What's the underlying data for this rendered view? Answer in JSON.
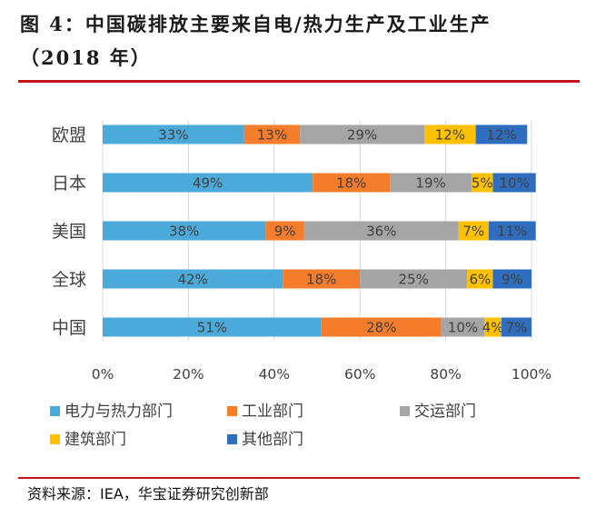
{
  "header": {
    "title_line1": "图 4：中国碳排放主要来自电/热力生产及工业生产",
    "title_line2": "（2018 年）"
  },
  "source": "资料来源：IEA，华宝证券研究创新部",
  "chart_data": {
    "type": "bar",
    "orientation": "horizontal",
    "stacked": true,
    "percent": true,
    "categories": [
      "欧盟",
      "日本",
      "美国",
      "全球",
      "中国"
    ],
    "series": [
      {
        "name": "电力与热力部门",
        "color": "#4baad9",
        "values": [
          33,
          49,
          38,
          42,
          51
        ],
        "labels": [
          "33%",
          "49%",
          "38%",
          "42%",
          "51%"
        ]
      },
      {
        "name": "工业部门",
        "color": "#f47c2a",
        "values": [
          13,
          18,
          9,
          18,
          28
        ],
        "labels": [
          "13%",
          "18%",
          "9%",
          "18%",
          "28%"
        ]
      },
      {
        "name": "交运部门",
        "color": "#a5a5a5",
        "values": [
          29,
          19,
          36,
          25,
          10
        ],
        "labels": [
          "29%",
          "19%",
          "36%",
          "25%",
          "10%"
        ]
      },
      {
        "name": "建筑部门",
        "color": "#ffc000",
        "values": [
          12,
          5,
          7,
          6,
          4
        ],
        "labels": [
          "12%",
          "5%",
          "7%",
          "6%",
          "4%"
        ]
      },
      {
        "name": "其他部门",
        "color": "#2f6ebe",
        "values": [
          12,
          10,
          11,
          9,
          7
        ],
        "labels": [
          "12%",
          "10%",
          "11%",
          "9%",
          "7%"
        ]
      }
    ],
    "xlim": [
      0,
      100
    ],
    "xticks": [
      "0%",
      "20%",
      "40%",
      "60%",
      "80%",
      "100%"
    ],
    "grid": true,
    "legend_position": "bottom"
  }
}
